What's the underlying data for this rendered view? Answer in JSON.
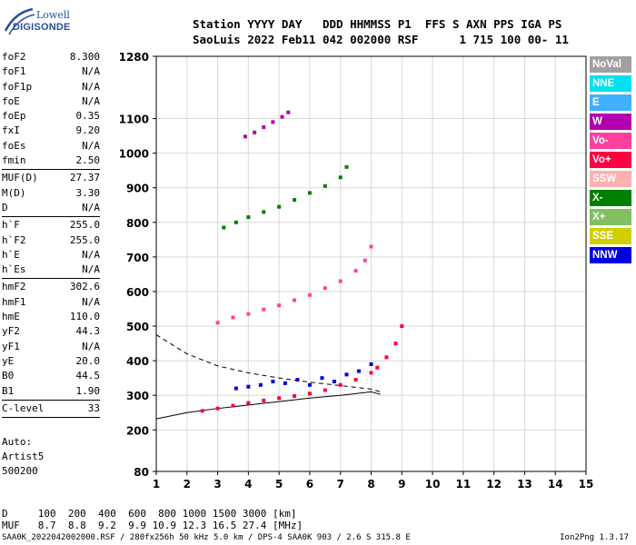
{
  "logo": {
    "line1": "Lowell",
    "line2": "DIGISONDE"
  },
  "header": {
    "line1": "Station YYYY DAY   DDD HHMMSS P1  FFS S AXN PPS IGA PS",
    "line2": "SaoLuis 2022 Feb11 042 002000 RSF      1 715 100 00- 11"
  },
  "params": [
    {
      "group": [
        {
          "name": "foF2",
          "value": "8.300"
        },
        {
          "name": "foF1",
          "value": "N/A"
        },
        {
          "name": "foF1p",
          "value": "N/A"
        },
        {
          "name": "foE",
          "value": "N/A"
        },
        {
          "name": "foEp",
          "value": "0.35"
        },
        {
          "name": "fxI",
          "value": "9.20"
        },
        {
          "name": "foEs",
          "value": "N/A"
        },
        {
          "name": "fmin",
          "value": "2.50"
        }
      ]
    },
    {
      "group": [
        {
          "name": "MUF(D)",
          "value": "27.37"
        },
        {
          "name": "M(D)",
          "value": "3.30"
        },
        {
          "name": "D",
          "value": "N/A"
        }
      ]
    },
    {
      "group": [
        {
          "name": "h`F",
          "value": "255.0"
        },
        {
          "name": "h`F2",
          "value": "255.0"
        },
        {
          "name": "h`E",
          "value": "N/A"
        },
        {
          "name": "h`Es",
          "value": "N/A"
        }
      ]
    },
    {
      "group": [
        {
          "name": "hmF2",
          "value": "302.6"
        },
        {
          "name": "hmF1",
          "value": "N/A"
        },
        {
          "name": "hmE",
          "value": "110.0"
        },
        {
          "name": "yF2",
          "value": "44.3"
        },
        {
          "name": "yF1",
          "value": "N/A"
        },
        {
          "name": "yE",
          "value": "20.0"
        },
        {
          "name": "B0",
          "value": "44.5"
        },
        {
          "name": "B1",
          "value": "1.90"
        }
      ]
    },
    {
      "group": [
        {
          "name": "C-level",
          "value": "33"
        }
      ]
    }
  ],
  "autoscale": {
    "line1": "Auto:",
    "line2": "Artist5",
    "line3": "500200"
  },
  "legend": [
    {
      "label": "NoVal",
      "color": "#a0a0a0"
    },
    {
      "label": "NNE",
      "color": "#00e0f0"
    },
    {
      "label": "E",
      "color": "#40b0ff"
    },
    {
      "label": "W",
      "color": "#b000b0"
    },
    {
      "label": "Vo-",
      "color": "#ff40a0"
    },
    {
      "label": "Vo+",
      "color": "#ff0040"
    },
    {
      "label": "SSW",
      "color": "#ffb0b0"
    },
    {
      "label": "X-",
      "color": "#008000"
    },
    {
      "label": "X+",
      "color": "#80c060"
    },
    {
      "label": "SSE",
      "color": "#d0d000"
    },
    {
      "label": "NNW",
      "color": "#0000e0"
    }
  ],
  "table": {
    "row1": "D     100  200  400  600  800 1000 1500 3000 [km]",
    "row2": "MUF   8.7  8.8  9.2  9.9 10.9 12.3 16.5 27.4 [MHz]"
  },
  "footer": "SAA0K_2022042002000.RSF / 280fx256h 50 kHz 5.0 km / DPS-4 SAA0K 903 / 2.6 S 315.8 E",
  "version": "Ion2Png 1.3.17",
  "chart_data": {
    "type": "scatter",
    "title": "",
    "xlabel": "",
    "ylabel": "",
    "x_ticks": [
      1,
      2,
      3,
      4,
      5,
      6,
      7,
      8,
      9,
      10,
      11,
      12,
      13,
      14,
      15
    ],
    "y_ticks": [
      80,
      200,
      300,
      400,
      500,
      600,
      700,
      800,
      900,
      1000,
      1100,
      1280
    ],
    "xlim": [
      1,
      15
    ],
    "ylim": [
      80,
      1280
    ],
    "grid": true,
    "legend_position": "right",
    "series": [
      {
        "name": "Vo+",
        "x": [
          2.5,
          3.0,
          3.5,
          4.0,
          4.5,
          5.0,
          5.5,
          6.0,
          6.5,
          7.0,
          7.5,
          8.0,
          8.2,
          8.5,
          8.8,
          9.0
        ],
        "y": [
          255,
          262,
          270,
          278,
          285,
          292,
          298,
          305,
          315,
          330,
          345,
          365,
          380,
          410,
          450,
          500
        ]
      },
      {
        "name": "Vo-",
        "x": [
          3.0,
          3.5,
          4.0,
          4.5,
          5.0,
          5.5,
          6.0,
          6.5,
          7.0,
          7.5,
          7.8,
          8.0
        ],
        "y": [
          510,
          525,
          535,
          548,
          560,
          575,
          590,
          610,
          630,
          660,
          690,
          730
        ]
      },
      {
        "name": "X-",
        "x": [
          3.2,
          3.6,
          4.0,
          4.5,
          5.0,
          5.5,
          6.0,
          6.5,
          7.0,
          7.2
        ],
        "y": [
          785,
          800,
          815,
          830,
          845,
          865,
          885,
          905,
          930,
          960
        ]
      },
      {
        "name": "W",
        "x": [
          3.9,
          4.2,
          4.5,
          4.8,
          5.1,
          5.3
        ],
        "y": [
          1048,
          1060,
          1075,
          1090,
          1105,
          1118
        ]
      },
      {
        "name": "NNW",
        "x": [
          3.6,
          4.0,
          4.4,
          4.8,
          5.2,
          5.6,
          6.0,
          6.4,
          6.8,
          7.2,
          7.6,
          8.0
        ],
        "y": [
          320,
          325,
          330,
          340,
          335,
          345,
          330,
          350,
          340,
          360,
          370,
          390
        ]
      }
    ],
    "lines": [
      {
        "name": "profile",
        "x": [
          1.0,
          2.0,
          3.0,
          4.0,
          5.0,
          6.0,
          7.0,
          8.0,
          8.3
        ],
        "y": [
          232,
          250,
          262,
          272,
          282,
          292,
          300,
          310,
          303
        ]
      },
      {
        "name": "dashed-profile",
        "x": [
          1.0,
          2.0,
          3.0,
          4.0,
          5.0,
          6.0,
          7.0,
          8.0,
          8.3
        ],
        "y": [
          475,
          420,
          385,
          365,
          350,
          338,
          328,
          318,
          310
        ]
      }
    ]
  }
}
